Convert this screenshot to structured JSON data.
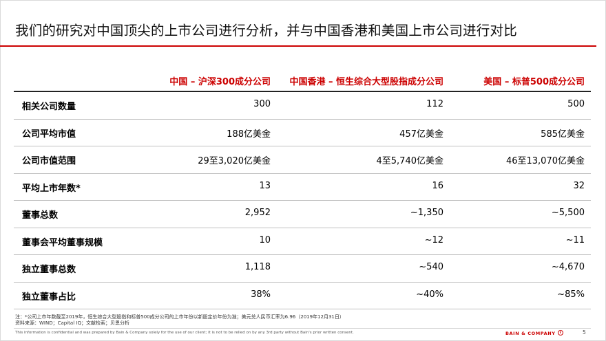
{
  "title": "我们的研究对中国顶尖的上市公司进行分析，并与中国香港和美国上市公司进行对比",
  "headers": [
    "中国 – 沪深300成分公司",
    "中国香港 – 恒生综合大型股指成分公司",
    "美国 – 标普500成分公司"
  ],
  "rows": [
    {
      "label": "相关公司数量",
      "v1": "300",
      "v2": "112",
      "v3": "500"
    },
    {
      "label": "公司平均市值",
      "v1": "188亿美金",
      "v2": "457亿美金",
      "v3": "585亿美金"
    },
    {
      "label": "公司市值范围",
      "v1": "29至3,020亿美金",
      "v2": "4至5,740亿美金",
      "v3": "46至13,070亿美金"
    },
    {
      "label": "平均上市年数*",
      "v1": "13",
      "v2": "16",
      "v3": "32"
    },
    {
      "label": "董事总数",
      "v1": "2,952",
      "v2": "~1,350",
      "v3": "~5,500"
    },
    {
      "label": "董事会平均董事规模",
      "v1": "10",
      "v2": "~12",
      "v3": "~11"
    },
    {
      "label": "独立董事总数",
      "v1": "1,118",
      "v2": "~540",
      "v3": "~4,670"
    },
    {
      "label": "独立董事占比",
      "v1": "38%",
      "v2": "~40%",
      "v3": "~85%"
    }
  ],
  "notes": {
    "line1": "注：*公司上市年数截至2019年，恒生综合大型股指和标普500成分公司的上市年份以新股定价年份为准；美元兑人民币汇率为6.96（2019年12月31日）",
    "line2": "资料来源：WIND；Capital IQ；文献检索；贝恩分析"
  },
  "footer": {
    "disclaimer": "This information is confidential and was prepared by Bain & Company solely for the use of our client; it is not to be relied on by any 3rd party without Bain's prior written consent.",
    "brand": "BAIN & COMPANY",
    "page": "5"
  },
  "colors": {
    "accent": "#cc0000"
  }
}
